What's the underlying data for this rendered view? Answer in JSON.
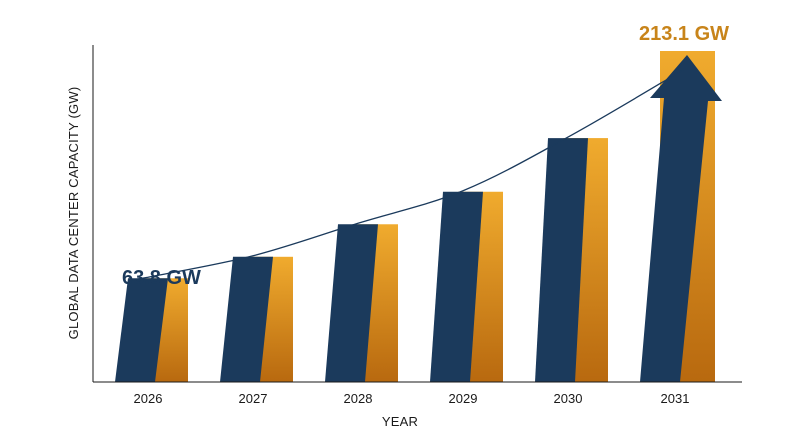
{
  "chart_data": {
    "type": "bar",
    "title": "",
    "xlabel": "YEAR",
    "ylabel": "GLOBAL DATA CENTER CAPACITY (GW)",
    "categories": [
      "2026",
      "2027",
      "2028",
      "2029",
      "2030",
      "2031"
    ],
    "values": [
      63.8,
      77,
      97,
      117,
      150,
      213.1
    ],
    "ylim": [
      0,
      230
    ],
    "grid": false,
    "legend": "none",
    "annotations": [
      {
        "text": "63.8 GW",
        "category": "2026",
        "color": "#1b3a5c"
      },
      {
        "text": "213.1 GW",
        "category": "2031",
        "color": "#c8841a"
      }
    ],
    "trend_curve": true,
    "colors": {
      "bar_front": "#1b3a5c",
      "bar_side_light": "#f0ab2e",
      "bar_side_dark": "#b8690f",
      "axis": "#1a1a1a",
      "trend": "#1b3a5c"
    }
  }
}
